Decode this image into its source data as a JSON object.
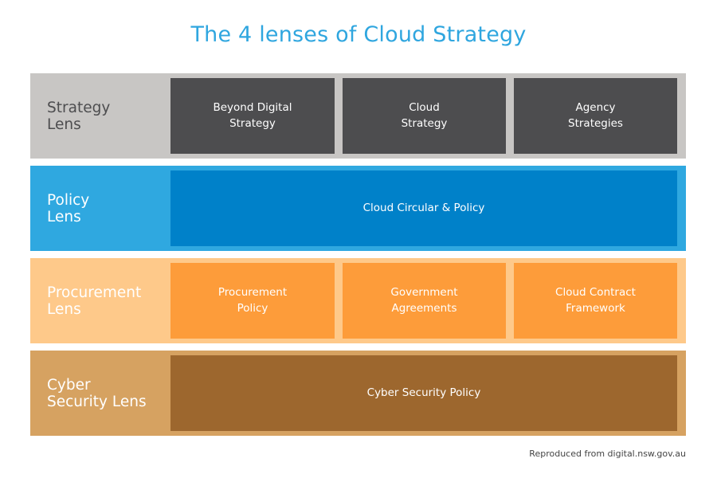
{
  "title": "The 4 lenses of Cloud Strategy",
  "colors": {
    "title": "#2fa6df",
    "strategy_bg": "#c8c6c4",
    "strategy_box": "#4d4d4f",
    "policy_bg": "#2fa8e0",
    "policy_box": "#0081c9",
    "procurement_bg": "#fec98a",
    "procurement_box": "#fd9c3a",
    "cyber_bg": "#d6a261",
    "cyber_box": "#9d672e"
  },
  "rows": [
    {
      "lens": "Strategy\nLens",
      "boxes": [
        "Beyond Digital\nStrategy",
        "Cloud\nStrategy",
        "Agency\nStrategies"
      ]
    },
    {
      "lens": "Policy\nLens",
      "boxes": [
        "Cloud Circular & Policy"
      ]
    },
    {
      "lens": "Procurement\nLens",
      "boxes": [
        "Procurement\nPolicy",
        "Government\nAgreements",
        "Cloud Contract\nFramework"
      ]
    },
    {
      "lens": "Cyber\nSecurity Lens",
      "boxes": [
        "Cyber Security Policy"
      ]
    }
  ],
  "footer": "Reproduced from digital.nsw.gov.au"
}
